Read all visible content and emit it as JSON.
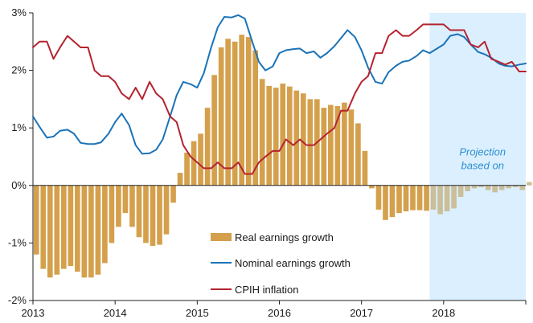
{
  "colors": {
    "real": "#d4a04c",
    "real_projection": "#cbbf9a",
    "nominal": "#1a73b8",
    "cpih": "#b5232f",
    "projection_band": "#dcefff",
    "projection_text": "#2a8fd0",
    "axis": "#222222"
  },
  "chart_data": {
    "type": "bar+line",
    "title": "",
    "xlabel": "",
    "ylabel": "",
    "ylim": [
      -2,
      3
    ],
    "xlim": [
      2013.0,
      2019.0
    ],
    "yticks": [
      -2,
      -1,
      0,
      1,
      2,
      3
    ],
    "ytick_labels": [
      "-2%",
      "-1%",
      "0%",
      "1%",
      "2%",
      "3%"
    ],
    "xticks": [
      2013,
      2014,
      2015,
      2016,
      2017,
      2018
    ],
    "xtick_labels": [
      "2013",
      "2014",
      "2015",
      "2016",
      "2017",
      "2018"
    ],
    "projection": {
      "start": 2017.83,
      "end": 2019.0,
      "label_line1": "Projection",
      "label_line2": "based on"
    },
    "legend": [
      {
        "label": "Real earnings growth",
        "kind": "bar",
        "series": "real"
      },
      {
        "label": "Nominal earnings growth",
        "kind": "line",
        "series": "nominal"
      },
      {
        "label": "CPIH inflation",
        "kind": "line",
        "series": "cpih"
      }
    ],
    "series": [
      {
        "key": "real",
        "kind": "bar",
        "x_start": 2013.0,
        "step": 0.0833333,
        "values": [
          -1.2,
          -1.45,
          -1.6,
          -1.55,
          -1.45,
          -1.4,
          -1.5,
          -1.6,
          -1.6,
          -1.55,
          -1.35,
          -1.0,
          -0.72,
          -0.48,
          -0.72,
          -0.9,
          -1.0,
          -1.05,
          -1.03,
          -0.85,
          -0.3,
          0.22,
          0.57,
          0.77,
          0.9,
          1.35,
          1.92,
          2.4,
          2.55,
          2.5,
          2.62,
          2.58,
          2.35,
          1.85,
          1.73,
          1.7,
          1.77,
          1.72,
          1.65,
          1.6,
          1.5,
          1.5,
          1.35,
          1.4,
          1.38,
          1.44,
          1.32,
          1.08,
          0.6,
          -0.05,
          -0.42,
          -0.6,
          -0.55,
          -0.48,
          -0.45,
          -0.43,
          -0.43,
          -0.44,
          -0.42,
          -0.5,
          -0.45,
          -0.4,
          -0.2,
          -0.1,
          -0.05,
          -0.03,
          -0.08,
          -0.12,
          -0.08,
          -0.05,
          -0.03,
          -0.08,
          0.06
        ]
      },
      {
        "key": "nominal",
        "kind": "line",
        "x": [
          2013.0,
          2013.08,
          2013.17,
          2013.25,
          2013.33,
          2013.42,
          2013.5,
          2013.58,
          2013.67,
          2013.75,
          2013.83,
          2013.92,
          2014.0,
          2014.08,
          2014.17,
          2014.25,
          2014.33,
          2014.42,
          2014.5,
          2014.58,
          2014.67,
          2014.75,
          2014.83,
          2014.92,
          2015.0,
          2015.08,
          2015.17,
          2015.25,
          2015.33,
          2015.42,
          2015.5,
          2015.58,
          2015.67,
          2015.75,
          2015.83,
          2015.92,
          2016.0,
          2016.08,
          2016.17,
          2016.25,
          2016.33,
          2016.42,
          2016.5,
          2016.58,
          2016.67,
          2016.75,
          2016.83,
          2016.92,
          2017.0,
          2017.08,
          2017.17,
          2017.25,
          2017.33,
          2017.42,
          2017.5,
          2017.58,
          2017.67,
          2017.75,
          2017.83,
          2017.92,
          2018.0,
          2018.08,
          2018.17,
          2018.25,
          2018.33,
          2018.42,
          2018.5,
          2018.58,
          2018.67,
          2018.75,
          2018.83,
          2018.92,
          2019.0
        ],
        "y": [
          1.2,
          1.02,
          0.83,
          0.85,
          0.95,
          0.97,
          0.9,
          0.74,
          0.72,
          0.72,
          0.75,
          0.9,
          1.1,
          1.25,
          1.05,
          0.7,
          0.55,
          0.56,
          0.62,
          0.8,
          1.2,
          1.57,
          1.8,
          1.76,
          1.7,
          1.95,
          2.4,
          2.75,
          2.93,
          2.92,
          2.96,
          2.9,
          2.5,
          2.15,
          2.0,
          2.07,
          2.3,
          2.35,
          2.37,
          2.38,
          2.3,
          2.33,
          2.22,
          2.3,
          2.42,
          2.56,
          2.7,
          2.58,
          2.35,
          2.05,
          1.8,
          1.77,
          1.97,
          2.08,
          2.15,
          2.17,
          2.25,
          2.35,
          2.3,
          2.38,
          2.45,
          2.6,
          2.63,
          2.58,
          2.45,
          2.32,
          2.28,
          2.22,
          2.12,
          2.08,
          2.07,
          2.1,
          2.12
        ]
      },
      {
        "key": "cpih",
        "kind": "line",
        "x": [
          2013.0,
          2013.08,
          2013.17,
          2013.25,
          2013.33,
          2013.42,
          2013.5,
          2013.58,
          2013.67,
          2013.75,
          2013.83,
          2013.92,
          2014.0,
          2014.08,
          2014.17,
          2014.25,
          2014.33,
          2014.42,
          2014.5,
          2014.58,
          2014.67,
          2014.75,
          2014.83,
          2014.92,
          2015.0,
          2015.08,
          2015.17,
          2015.25,
          2015.33,
          2015.42,
          2015.5,
          2015.58,
          2015.67,
          2015.75,
          2015.83,
          2015.92,
          2016.0,
          2016.08,
          2016.17,
          2016.25,
          2016.33,
          2016.42,
          2016.5,
          2016.58,
          2016.67,
          2016.75,
          2016.83,
          2016.92,
          2017.0,
          2017.08,
          2017.17,
          2017.25,
          2017.33,
          2017.42,
          2017.5,
          2017.58,
          2017.67,
          2017.75,
          2017.83,
          2017.92,
          2018.0,
          2018.08,
          2018.17,
          2018.25,
          2018.33,
          2018.42,
          2018.5,
          2018.58,
          2018.67,
          2018.75,
          2018.83,
          2018.92,
          2019.0
        ],
        "y": [
          2.4,
          2.5,
          2.5,
          2.2,
          2.4,
          2.6,
          2.5,
          2.4,
          2.4,
          2.0,
          1.9,
          1.9,
          1.8,
          1.6,
          1.5,
          1.7,
          1.5,
          1.8,
          1.6,
          1.5,
          1.2,
          1.1,
          0.7,
          0.5,
          0.4,
          0.3,
          0.3,
          0.4,
          0.3,
          0.3,
          0.4,
          0.2,
          0.2,
          0.4,
          0.5,
          0.6,
          0.6,
          0.8,
          0.7,
          0.8,
          0.7,
          0.7,
          0.8,
          0.9,
          1.0,
          1.3,
          1.3,
          1.6,
          1.8,
          1.9,
          2.3,
          2.3,
          2.6,
          2.7,
          2.6,
          2.6,
          2.7,
          2.8,
          2.8,
          2.8,
          2.8,
          2.7,
          2.7,
          2.7,
          2.45,
          2.4,
          2.5,
          2.2,
          2.15,
          2.1,
          2.15,
          1.98,
          1.98
        ]
      }
    ]
  }
}
